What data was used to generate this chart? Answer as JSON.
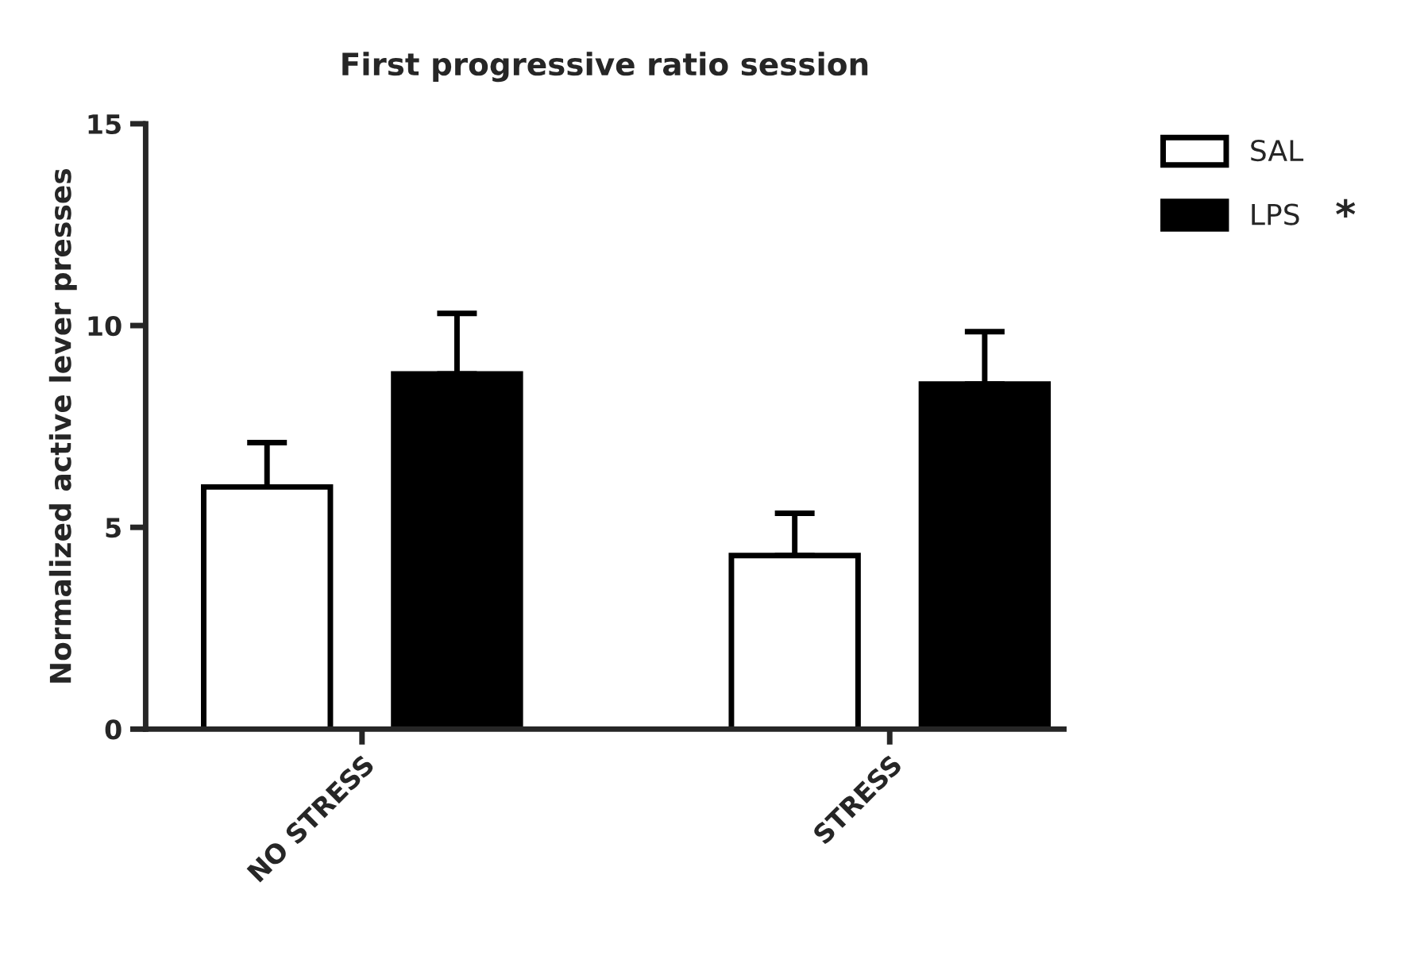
{
  "chart_data": {
    "type": "bar",
    "title": "First progressive ratio session",
    "ylabel": "Normalized active lever presses",
    "categories": [
      "NO STRESS",
      "STRESS"
    ],
    "series": [
      {
        "name": "SAL",
        "color": "#ffffff",
        "values": [
          6.0,
          4.3
        ],
        "errors": [
          [
            6.0,
            7.1
          ],
          [
            4.3,
            5.35
          ]
        ]
      },
      {
        "name": "LPS",
        "color": "#000000",
        "values": [
          8.8,
          8.55
        ],
        "errors": [
          [
            8.8,
            10.3
          ],
          [
            8.55,
            9.85
          ]
        ]
      }
    ],
    "ylim": [
      0,
      15
    ],
    "yticks": [
      0,
      5,
      10,
      15
    ],
    "grid": false,
    "legend": "top right",
    "annotations": [
      "*"
    ]
  }
}
